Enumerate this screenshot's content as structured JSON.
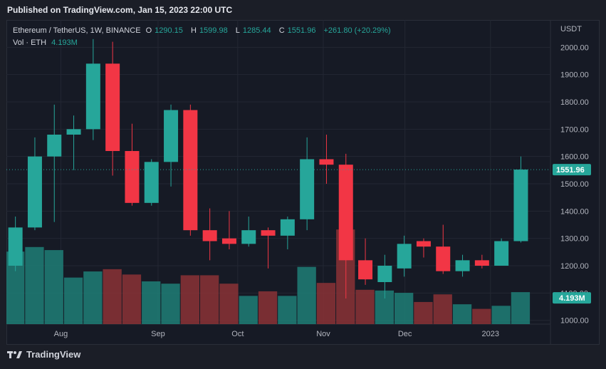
{
  "header": {
    "published": "Published on TradingView.com, Jan 15, 2023 22:00 UTC"
  },
  "legend": {
    "symbol": "Ethereum / TetherUS, 1W, BINANCE",
    "o_label": "O",
    "o": "1290.15",
    "h_label": "H",
    "h": "1599.98",
    "l_label": "L",
    "l": "1285.44",
    "c_label": "C",
    "c": "1551.96",
    "change": "+261.80 (+20.29%)",
    "vol_label": "Vol · ETH",
    "vol_value": "4.193M"
  },
  "footer": {
    "brand": "TradingView"
  },
  "colors": {
    "up": "#26a69a",
    "down": "#f23645",
    "up_vol": "#1f7f77",
    "down_vol": "#8b3236",
    "bg": "#161a25",
    "grid": "#2a2e39"
  },
  "chart_data": {
    "type": "candlestick",
    "currency": "USDT",
    "ylim": [
      900,
      2100
    ],
    "y_ticks": [
      "1000.00",
      "1100.00",
      "1200.00",
      "1300.00",
      "1400.00",
      "1500.00",
      "1600.00",
      "1700.00",
      "1800.00",
      "1900.00",
      "2000.00"
    ],
    "x_ticks": [
      "Aug",
      "Sep",
      "Oct",
      "Nov",
      "Dec",
      "2023"
    ],
    "last_price": "1551.96",
    "last_volume": "4.193M",
    "volume_max": 14,
    "candles": [
      {
        "o": 1200,
        "h": 1380,
        "l": 1180,
        "c": 1340,
        "v": 9.5
      },
      {
        "o": 1340,
        "h": 1670,
        "l": 1330,
        "c": 1600,
        "v": 10.1
      },
      {
        "o": 1600,
        "h": 1790,
        "l": 1360,
        "c": 1680,
        "v": 9.7
      },
      {
        "o": 1680,
        "h": 1750,
        "l": 1550,
        "c": 1700,
        "v": 6.1
      },
      {
        "o": 1700,
        "h": 2030,
        "l": 1660,
        "c": 1940,
        "v": 6.9
      },
      {
        "o": 1940,
        "h": 2020,
        "l": 1530,
        "c": 1620,
        "v": 7.2
      },
      {
        "o": 1620,
        "h": 1720,
        "l": 1420,
        "c": 1430,
        "v": 6.5
      },
      {
        "o": 1430,
        "h": 1590,
        "l": 1420,
        "c": 1580,
        "v": 5.6
      },
      {
        "o": 1580,
        "h": 1790,
        "l": 1490,
        "c": 1770,
        "v": 5.3
      },
      {
        "o": 1770,
        "h": 1790,
        "l": 1310,
        "c": 1330,
        "v": 6.4
      },
      {
        "o": 1330,
        "h": 1410,
        "l": 1220,
        "c": 1290,
        "v": 6.4
      },
      {
        "o": 1300,
        "h": 1400,
        "l": 1260,
        "c": 1280,
        "v": 5.3
      },
      {
        "o": 1280,
        "h": 1380,
        "l": 1270,
        "c": 1330,
        "v": 3.7
      },
      {
        "o": 1330,
        "h": 1340,
        "l": 1190,
        "c": 1310,
        "v": 4.3
      },
      {
        "o": 1310,
        "h": 1380,
        "l": 1260,
        "c": 1370,
        "v": 3.7
      },
      {
        "o": 1370,
        "h": 1670,
        "l": 1330,
        "c": 1590,
        "v": 7.5
      },
      {
        "o": 1590,
        "h": 1680,
        "l": 1500,
        "c": 1570,
        "v": 5.4
      },
      {
        "o": 1570,
        "h": 1610,
        "l": 1080,
        "c": 1220,
        "v": 12.4
      },
      {
        "o": 1220,
        "h": 1300,
        "l": 1130,
        "c": 1150,
        "v": 4.5
      },
      {
        "o": 1140,
        "h": 1240,
        "l": 1080,
        "c": 1200,
        "v": 4.4
      },
      {
        "o": 1190,
        "h": 1310,
        "l": 1160,
        "c": 1280,
        "v": 4.1
      },
      {
        "o": 1290,
        "h": 1300,
        "l": 1230,
        "c": 1270,
        "v": 2.9
      },
      {
        "o": 1270,
        "h": 1350,
        "l": 1170,
        "c": 1180,
        "v": 3.9
      },
      {
        "o": 1180,
        "h": 1240,
        "l": 1160,
        "c": 1220,
        "v": 2.6
      },
      {
        "o": 1220,
        "h": 1240,
        "l": 1190,
        "c": 1200,
        "v": 2.0
      },
      {
        "o": 1200,
        "h": 1300,
        "l": 1200,
        "c": 1290,
        "v": 2.4
      },
      {
        "o": 1290,
        "h": 1600,
        "l": 1285,
        "c": 1552,
        "v": 4.19
      }
    ]
  }
}
